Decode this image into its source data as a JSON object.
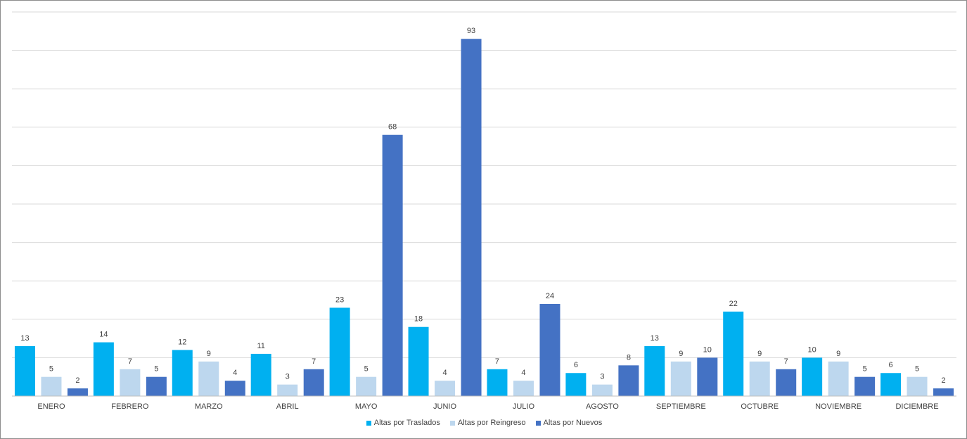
{
  "chart_data": {
    "type": "bar",
    "categories": [
      "ENERO",
      "FEBRERO",
      "MARZO",
      "ABRIL",
      "MAYO",
      "JUNIO",
      "JULIO",
      "AGOSTO",
      "SEPTIEMBRE",
      "OCTUBRE",
      "NOVIEMBRE",
      "DICIEMBRE"
    ],
    "series": [
      {
        "name": "Altas por Traslados",
        "color": "#00b0f0",
        "values": [
          13,
          14,
          12,
          11,
          23,
          18,
          7,
          6,
          13,
          22,
          10,
          6
        ]
      },
      {
        "name": "Altas por Reingreso",
        "color": "#bdd7ee",
        "values": [
          5,
          7,
          9,
          3,
          5,
          4,
          4,
          3,
          9,
          9,
          9,
          5
        ]
      },
      {
        "name": "Altas por Nuevos",
        "color": "#4472c4",
        "values": [
          2,
          5,
          4,
          7,
          68,
          93,
          24,
          8,
          10,
          7,
          5,
          2
        ]
      }
    ],
    "ylim": [
      0,
      100
    ],
    "y_grid_step": 10,
    "grid": true,
    "data_labels": true,
    "legend_position": "bottom",
    "title": "",
    "xlabel": "",
    "ylabel": ""
  }
}
